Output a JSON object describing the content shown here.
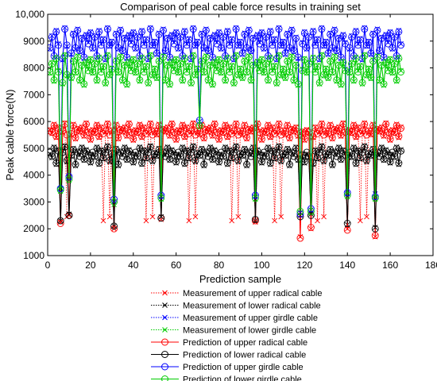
{
  "chart_data": {
    "type": "line",
    "title": "Comparison of peal cable force results in training set",
    "xlabel": "Prediction sample",
    "ylabel": "Peak cable force(N)",
    "xlim": [
      0,
      180
    ],
    "ylim": [
      1000,
      10000
    ],
    "xticks": [
      0,
      20,
      40,
      60,
      80,
      100,
      120,
      140,
      160,
      180
    ],
    "yticks": [
      1000,
      2000,
      3000,
      4000,
      5000,
      6000,
      7000,
      8000,
      9000,
      10000
    ],
    "ytick_labels": [
      "1000",
      "2000",
      "3000",
      "4000",
      "5000",
      "6000",
      "7000",
      "8000",
      "9000",
      "10,000"
    ],
    "grid": false,
    "legend_position": "below-plot",
    "n_samples": 165,
    "series": [
      {
        "name": "Measurement of upper radical cable",
        "color": "#ff0000",
        "style": "dotted",
        "marker": "x",
        "pattern": [
          5700,
          5550,
          5900,
          5400,
          5800,
          2300,
          5600,
          5950,
          2450,
          5700,
          5500,
          5900,
          5350,
          5750,
          5600,
          5800,
          5450,
          5950,
          5650,
          5300
        ],
        "dips": {
          "5": 2250,
          "9": 2500,
          "30": 2000,
          "52": 2350,
          "96": 2250,
          "117": 1700,
          "122": 2000,
          "139": 2000,
          "152": 1700
        }
      },
      {
        "name": "Measurement of lower radical cable",
        "color": "#000000",
        "style": "dotted",
        "marker": "x",
        "pattern": [
          4800,
          4650,
          5050,
          4400,
          4950,
          4600,
          4900,
          5100,
          4500,
          4850,
          4700,
          5000,
          4350,
          4900,
          4750,
          5050,
          4550,
          4950,
          4800,
          4450
        ],
        "dips": {
          "5": 2300,
          "9": 2550,
          "30": 2100,
          "52": 2450,
          "96": 2300,
          "117": 2500,
          "122": 2550,
          "139": 2150,
          "152": 2050
        }
      },
      {
        "name": "Measurement of upper girdle cable",
        "color": "#0000ff",
        "style": "dotted",
        "marker": "x",
        "pattern": [
          8700,
          9200,
          8400,
          9400,
          8900,
          9100,
          8300,
          9500,
          8800,
          9000,
          8500,
          9300,
          8700,
          9450,
          8600,
          9150,
          8350,
          9250,
          8950,
          9350
        ],
        "dips": {
          "5": 3500,
          "9": 3900,
          "30": 3000,
          "52": 3200,
          "70": 6000,
          "96": 3200,
          "117": 2600,
          "122": 2700,
          "139": 3300,
          "152": 3300
        }
      },
      {
        "name": "Measurement of lower girdle cable",
        "color": "#00cc00",
        "style": "dotted",
        "marker": "x",
        "pattern": [
          7800,
          8200,
          7500,
          8400,
          7900,
          8100,
          7400,
          8500,
          7700,
          8000,
          7600,
          8300,
          7800,
          8450,
          7500,
          8150,
          7350,
          8250,
          7950,
          8350
        ],
        "dips": {
          "5": 3400,
          "9": 3800,
          "30": 2900,
          "52": 3100,
          "70": 5800,
          "96": 3100,
          "117": 2600,
          "122": 2600,
          "139": 3200,
          "152": 3100
        }
      },
      {
        "name": "Prediction of upper radical cable",
        "color": "#ff0000",
        "style": "solid",
        "marker": "o",
        "pattern": [
          5650,
          5600,
          5850,
          5450,
          5750,
          5550,
          5650,
          5900,
          5500,
          5650,
          5550,
          5850,
          5400,
          5700,
          5650,
          5750,
          5500,
          5900,
          5600,
          5350
        ],
        "dips": {
          "5": 2200,
          "9": 2500,
          "30": 2000,
          "52": 2400,
          "96": 2300,
          "117": 1650,
          "122": 2050,
          "139": 1950,
          "152": 1750
        }
      },
      {
        "name": "Prediction of lower radical cable",
        "color": "#000000",
        "style": "solid",
        "marker": "o",
        "pattern": [
          4850,
          4700,
          5000,
          4450,
          4900,
          4650,
          4850,
          5050,
          4550,
          4800,
          4750,
          4950,
          4400,
          4850,
          4700,
          5000,
          4600,
          4900,
          4750,
          4500
        ],
        "dips": {
          "5": 2300,
          "9": 2500,
          "30": 2100,
          "52": 2400,
          "96": 2350,
          "117": 2450,
          "122": 2500,
          "139": 2200,
          "152": 2000
        }
      },
      {
        "name": "Prediction of upper girdle cable",
        "color": "#0000ff",
        "style": "solid",
        "marker": "o",
        "pattern": [
          8750,
          9150,
          8450,
          9350,
          8850,
          9050,
          8350,
          9450,
          8850,
          8950,
          8550,
          9250,
          8750,
          9400,
          8650,
          9100,
          8400,
          9200,
          8900,
          9300
        ],
        "dips": {
          "5": 3500,
          "9": 3950,
          "30": 3100,
          "52": 3250,
          "70": 6050,
          "96": 3250,
          "117": 2550,
          "122": 2750,
          "139": 3350,
          "152": 3200
        }
      },
      {
        "name": "Prediction of lower girdle cable",
        "color": "#00cc00",
        "style": "solid",
        "marker": "o",
        "pattern": [
          7850,
          8150,
          7550,
          8350,
          7850,
          8050,
          7450,
          8450,
          7750,
          7950,
          7650,
          8250,
          7850,
          8400,
          7550,
          8100,
          7400,
          8200,
          7900,
          8300
        ],
        "dips": {
          "5": 3450,
          "9": 3850,
          "30": 3000,
          "52": 3150,
          "70": 5850,
          "96": 3150,
          "117": 2650,
          "122": 2650,
          "139": 3250,
          "152": 3150
        }
      }
    ]
  }
}
